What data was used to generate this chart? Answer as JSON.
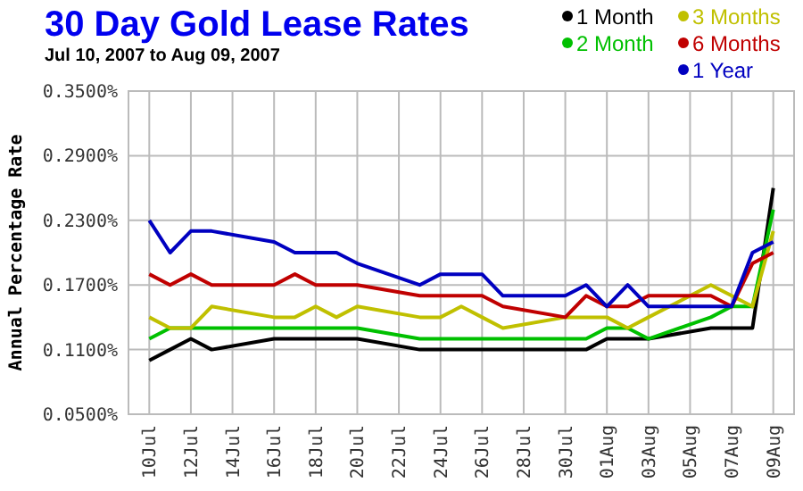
{
  "chart_data": {
    "type": "line",
    "title": "30 Day Gold Lease Rates",
    "subtitle": "Jul 10, 2007 to Aug 09, 2007",
    "ylabel": "Annual Percentage Rate",
    "x": [
      "2007-07-10",
      "2007-07-11",
      "2007-07-12",
      "2007-07-13",
      "2007-07-16",
      "2007-07-17",
      "2007-07-18",
      "2007-07-19",
      "2007-07-20",
      "2007-07-23",
      "2007-07-24",
      "2007-07-25",
      "2007-07-26",
      "2007-07-27",
      "2007-07-30",
      "2007-07-31",
      "2007-08-01",
      "2007-08-02",
      "2007-08-03",
      "2007-08-06",
      "2007-08-07",
      "2007-08-08",
      "2007-08-09"
    ],
    "series": [
      {
        "name": "1 Month",
        "color": "#000000",
        "values": [
          0.1,
          0.11,
          0.12,
          0.11,
          0.12,
          0.12,
          0.12,
          0.12,
          0.12,
          0.11,
          0.11,
          0.11,
          0.11,
          0.11,
          0.11,
          0.11,
          0.12,
          0.12,
          0.12,
          0.13,
          0.13,
          0.13,
          0.26
        ]
      },
      {
        "name": "2 Month",
        "color": "#00c000",
        "values": [
          0.12,
          0.13,
          0.13,
          0.13,
          0.13,
          0.13,
          0.13,
          0.13,
          0.13,
          0.12,
          0.12,
          0.12,
          0.12,
          0.12,
          0.12,
          0.12,
          0.13,
          0.13,
          0.12,
          0.14,
          0.15,
          0.15,
          0.24
        ]
      },
      {
        "name": "3 Months",
        "color": "#c0c000",
        "values": [
          0.14,
          0.13,
          0.13,
          0.15,
          0.14,
          0.14,
          0.15,
          0.14,
          0.15,
          0.14,
          0.14,
          0.15,
          0.14,
          0.13,
          0.14,
          0.14,
          0.14,
          0.13,
          0.14,
          0.17,
          0.16,
          0.15,
          0.22
        ]
      },
      {
        "name": "6 Months",
        "color": "#c00000",
        "values": [
          0.18,
          0.17,
          0.18,
          0.17,
          0.17,
          0.18,
          0.17,
          0.17,
          0.17,
          0.16,
          0.16,
          0.16,
          0.16,
          0.15,
          0.14,
          0.16,
          0.15,
          0.15,
          0.16,
          0.16,
          0.15,
          0.19,
          0.2
        ]
      },
      {
        "name": "1 Year",
        "color": "#0000c0",
        "values": [
          0.23,
          0.2,
          0.22,
          0.22,
          0.21,
          0.2,
          0.2,
          0.2,
          0.19,
          0.17,
          0.18,
          0.18,
          0.18,
          0.16,
          0.16,
          0.17,
          0.15,
          0.17,
          0.15,
          0.15,
          0.15,
          0.2,
          0.21
        ]
      }
    ],
    "xlim": [
      "2007-07-09",
      "2007-08-10"
    ],
    "xticks": [
      {
        "value": "2007-07-10",
        "label": "10Jul"
      },
      {
        "value": "2007-07-12",
        "label": "12Jul"
      },
      {
        "value": "2007-07-14",
        "label": "14Jul"
      },
      {
        "value": "2007-07-16",
        "label": "16Jul"
      },
      {
        "value": "2007-07-18",
        "label": "18Jul"
      },
      {
        "value": "2007-07-20",
        "label": "20Jul"
      },
      {
        "value": "2007-07-22",
        "label": "22Jul"
      },
      {
        "value": "2007-07-24",
        "label": "24Jul"
      },
      {
        "value": "2007-07-26",
        "label": "26Jul"
      },
      {
        "value": "2007-07-28",
        "label": "28Jul"
      },
      {
        "value": "2007-07-30",
        "label": "30Jul"
      },
      {
        "value": "2007-08-01",
        "label": "01Aug"
      },
      {
        "value": "2007-08-03",
        "label": "03Aug"
      },
      {
        "value": "2007-08-05",
        "label": "05Aug"
      },
      {
        "value": "2007-08-07",
        "label": "07Aug"
      },
      {
        "value": "2007-08-09",
        "label": "09Aug"
      }
    ],
    "ylim": [
      0.05,
      0.35
    ],
    "yticks": [
      {
        "value": 0.05,
        "label": "0.0500%"
      },
      {
        "value": 0.11,
        "label": "0.1100%"
      },
      {
        "value": 0.17,
        "label": "0.1700%"
      },
      {
        "value": 0.23,
        "label": "0.2300%"
      },
      {
        "value": 0.29,
        "label": "0.2900%"
      },
      {
        "value": 0.35,
        "label": "0.3500%"
      }
    ],
    "grid": true,
    "legend": "top right",
    "marker": "none",
    "line_style": "solid"
  }
}
